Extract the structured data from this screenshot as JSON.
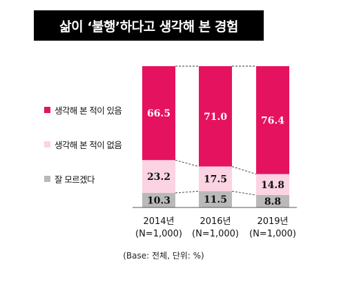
{
  "title": "삶이 ‘불행’하다고 생각해 본 경험",
  "base_note": "(Base: 전체, 단위: %)",
  "colors": {
    "experienced": "#e5135f",
    "not_experienced": "#fcd3e3",
    "unknown": "#b9b9b9",
    "title_bg": "#000000",
    "value_dark": "#111111",
    "value_light": "#ffffff"
  },
  "chart_data": {
    "type": "bar",
    "stacked": true,
    "categories": [
      {
        "year": "2014년",
        "sample": "(N=1,000)"
      },
      {
        "year": "2016년",
        "sample": "(N=1,000)"
      },
      {
        "year": "2019년",
        "sample": "(N=1,000)"
      }
    ],
    "series": [
      {
        "name": "생각해 본 적이 있음",
        "values": [
          66.5,
          71.0,
          76.4
        ],
        "labels": [
          "66.5",
          "71.0",
          "76.4"
        ]
      },
      {
        "name": "생각해 본 적이 없음",
        "values": [
          23.2,
          17.5,
          14.8
        ],
        "labels": [
          "23.2",
          "17.5",
          "14.8"
        ]
      },
      {
        "name": "잘 모르겠다",
        "values": [
          10.3,
          11.5,
          8.8
        ],
        "labels": [
          "10.3",
          "11.5",
          "8.8"
        ]
      }
    ],
    "ylim": [
      0,
      100
    ],
    "legend_position": "left",
    "connector_lines": "dashed"
  }
}
